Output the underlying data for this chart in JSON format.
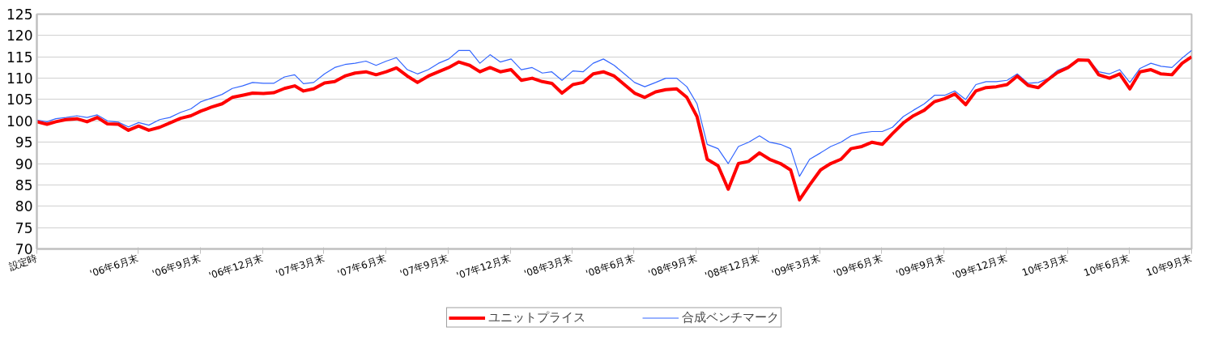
{
  "chart_data": {
    "type": "line",
    "x": [
      "2006-02-01",
      "2006-02-16",
      "2006-03-01",
      "2006-03-16",
      "2006-04-01",
      "2006-04-16",
      "2006-05-01",
      "2006-05-16",
      "2006-06-01",
      "2006-06-16",
      "2006-07-01",
      "2006-07-16",
      "2006-08-01",
      "2006-08-16",
      "2006-09-01",
      "2006-09-16",
      "2006-10-01",
      "2006-10-16",
      "2006-11-01",
      "2006-11-16",
      "2006-12-01",
      "2006-12-16",
      "2007-01-01",
      "2007-01-16",
      "2007-02-01",
      "2007-02-16",
      "2007-03-01",
      "2007-03-16",
      "2007-04-01",
      "2007-04-16",
      "2007-05-01",
      "2007-05-16",
      "2007-06-01",
      "2007-06-16",
      "2007-07-01",
      "2007-07-16",
      "2007-08-01",
      "2007-08-16",
      "2007-09-01",
      "2007-09-16",
      "2007-10-01",
      "2007-10-16",
      "2007-11-01",
      "2007-11-16",
      "2007-12-01",
      "2007-12-16",
      "2008-01-01",
      "2008-01-16",
      "2008-02-01",
      "2008-02-16",
      "2008-03-01",
      "2008-03-16",
      "2008-04-01",
      "2008-04-16",
      "2008-05-01",
      "2008-05-16",
      "2008-06-01",
      "2008-06-16",
      "2008-07-01",
      "2008-07-16",
      "2008-08-01",
      "2008-08-16",
      "2008-09-01",
      "2008-09-16",
      "2008-10-01",
      "2008-10-16",
      "2008-11-01",
      "2008-11-16",
      "2008-12-01",
      "2008-12-16",
      "2009-01-01",
      "2009-01-16",
      "2009-02-01",
      "2009-02-16",
      "2009-03-01",
      "2009-03-16",
      "2009-04-01",
      "2009-04-16",
      "2009-05-01",
      "2009-05-16",
      "2009-06-01",
      "2009-06-16",
      "2009-07-01",
      "2009-07-16",
      "2009-08-01",
      "2009-08-16",
      "2009-09-01",
      "2009-09-16",
      "2009-10-01",
      "2009-10-16",
      "2009-11-01",
      "2009-11-16",
      "2009-12-01",
      "2009-12-16",
      "2010-01-01",
      "2010-01-16",
      "2010-02-01",
      "2010-02-16",
      "2010-03-01",
      "2010-03-16",
      "2010-04-01",
      "2010-04-16",
      "2010-05-01",
      "2010-05-16",
      "2010-06-01",
      "2010-06-16",
      "2010-07-01",
      "2010-07-16",
      "2010-08-01",
      "2010-08-16",
      "2010-09-01",
      "2010-09-16",
      "2010-09-30"
    ],
    "series": [
      {
        "name": "ユニットプライス",
        "color": "#ff0000",
        "values": [
          99.8,
          99.2,
          99.8,
          100.3,
          100.5,
          99.8,
          100.8,
          99.3,
          99.2,
          97.8,
          98.8,
          97.8,
          98.5,
          99.5,
          100.6,
          101.2,
          102.3,
          103.2,
          104,
          105.5,
          106,
          106.5,
          106.4,
          106.6,
          107.6,
          108.2,
          107,
          107.5,
          108.9,
          109.2,
          110.5,
          111.2,
          111.5,
          110.8,
          111.5,
          112.4,
          110.5,
          109,
          110.5,
          111.5,
          112.5,
          113.8,
          113,
          111.5,
          112.5,
          111.5,
          112,
          109.5,
          110,
          109.2,
          108.8,
          106.5,
          108.5,
          109,
          111,
          111.5,
          110.5,
          108.5,
          106.5,
          105.5,
          106.8,
          107.3,
          107.5,
          105.5,
          101,
          91,
          89.5,
          84,
          90,
          90.5,
          92.5,
          91,
          90,
          88.5,
          81.5,
          85,
          88.5,
          90,
          91,
          93.5,
          94,
          95,
          94.5,
          97,
          99.5,
          101.2,
          102.5,
          104.5,
          105.2,
          106.3,
          103.8,
          107,
          107.8,
          108,
          108.5,
          110.5,
          108.3,
          107.8,
          109.5,
          111.3,
          112.5,
          114.3,
          114.2,
          110.8,
          110,
          111,
          107.5,
          111.5,
          112,
          111,
          110.8,
          113.5,
          115
        ]
      },
      {
        "name": "合成ベンチマーク",
        "color": "#3366ff",
        "values": [
          100.2,
          99.8,
          100.5,
          100.8,
          101.2,
          100.8,
          101.4,
          100,
          99.7,
          98.6,
          99.6,
          99,
          100.3,
          100.8,
          102,
          102.8,
          104.5,
          105.3,
          106.2,
          107.6,
          108.2,
          109,
          108.8,
          108.8,
          110.3,
          110.8,
          108.7,
          109,
          111,
          112.5,
          113.2,
          113.5,
          114,
          113,
          114,
          114.8,
          112,
          111,
          112,
          113.5,
          114.5,
          116.5,
          116.5,
          113.5,
          115.5,
          113.8,
          114.5,
          112,
          112.5,
          111.2,
          111.5,
          109.5,
          111.7,
          111.5,
          113.5,
          114.5,
          113,
          111,
          109,
          108,
          109,
          110,
          110,
          108,
          104,
          94.5,
          93.5,
          90,
          94,
          95,
          96.5,
          95,
          94.5,
          93.5,
          87,
          91,
          92.5,
          94,
          95,
          96.5,
          97.2,
          97.5,
          97.5,
          98.5,
          101,
          102.5,
          104,
          106,
          106,
          107,
          105,
          108.5,
          109.2,
          109.2,
          109.5,
          111,
          108.8,
          109,
          109.8,
          111.8,
          112.8,
          114.3,
          114.4,
          111.5,
          111,
          112,
          109,
          112.3,
          113.5,
          112.8,
          112.5,
          114.7,
          116.5
        ]
      }
    ],
    "xlim": [
      "2006-02-01",
      "2010-09-30"
    ],
    "xticks": [
      {
        "value": "2006-02-01",
        "label": "設定時"
      },
      {
        "value": "2006-06-30",
        "label": "'06年6月末"
      },
      {
        "value": "2006-09-30",
        "label": "'06年9月末"
      },
      {
        "value": "2006-12-31",
        "label": "'06年12月末"
      },
      {
        "value": "2007-03-31",
        "label": "'07年3月末"
      },
      {
        "value": "2007-06-30",
        "label": "'07年6月末"
      },
      {
        "value": "2007-09-30",
        "label": "'07年9月末"
      },
      {
        "value": "2007-12-31",
        "label": "'07年12月末"
      },
      {
        "value": "2008-03-31",
        "label": "'08年3月末"
      },
      {
        "value": "2008-06-30",
        "label": "'08年6月末"
      },
      {
        "value": "2008-09-30",
        "label": "'08年9月末"
      },
      {
        "value": "2008-12-31",
        "label": "'08年12月末"
      },
      {
        "value": "2009-03-31",
        "label": "'09年3月末"
      },
      {
        "value": "2009-06-30",
        "label": "'09年6月末"
      },
      {
        "value": "2009-09-30",
        "label": "'09年9月末"
      },
      {
        "value": "2009-12-31",
        "label": "'09年12月末"
      },
      {
        "value": "2010-03-31",
        "label": "10年3月末"
      },
      {
        "value": "2010-06-30",
        "label": "10年6月末"
      },
      {
        "value": "2010-09-30",
        "label": "10年9月末"
      }
    ],
    "ylim": [
      70,
      125
    ],
    "yticks": [
      70,
      75,
      80,
      85,
      90,
      95,
      100,
      105,
      110,
      115,
      120,
      125
    ],
    "grid": "y",
    "legend": "bottom",
    "marker": "none"
  }
}
